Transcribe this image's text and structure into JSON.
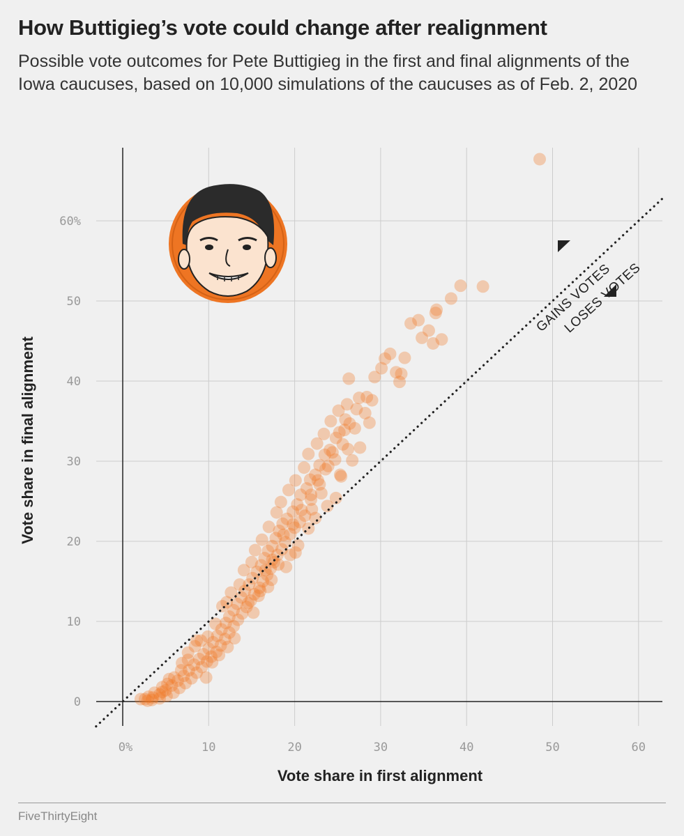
{
  "title": "How Buttigieg’s vote could change after realignment",
  "subtitle": "Possible vote outcomes for Pete Buttigieg in the first and final alignments of the Iowa caucuses, based on 10,000 simulations of the caucuses as of Feb. 2, 2020",
  "footer": "FiveThirtyEight",
  "colors": {
    "point": "#ee7523",
    "grid": "#cccccc",
    "axis": "#222222",
    "background": "#f0f0f0"
  },
  "icons": {
    "portrait": "pete-buttigieg-caricature-icon"
  },
  "chart_data": {
    "type": "scatter",
    "xlabel": "Vote share in first alignment",
    "ylabel": "Vote share in final alignment",
    "xlim": [
      -3,
      63
    ],
    "ylim": [
      -3,
      68
    ],
    "x_ticks": [
      0,
      10,
      20,
      30,
      40,
      50,
      60
    ],
    "x_tick_labels": [
      "0%",
      "10",
      "20",
      "30",
      "40",
      "50",
      "60"
    ],
    "y_ticks": [
      0,
      10,
      20,
      30,
      40,
      50,
      60
    ],
    "y_tick_labels": [
      "0",
      "10",
      "20",
      "30",
      "40",
      "50",
      "60%"
    ],
    "grid": true,
    "reference_line": {
      "type": "diagonal",
      "label_above": "GAINS VOTES",
      "label_below": "LOSES VOTES"
    },
    "points": [
      [
        48.5,
        67.7
      ],
      [
        39.3,
        51.9
      ],
      [
        41.9,
        51.8
      ],
      [
        38.2,
        50.3
      ],
      [
        36.5,
        48.9
      ],
      [
        36.4,
        48.5
      ],
      [
        33.5,
        47.2
      ],
      [
        34.4,
        47.6
      ],
      [
        34.8,
        45.4
      ],
      [
        35.6,
        46.3
      ],
      [
        37.1,
        45.2
      ],
      [
        36.1,
        44.7
      ],
      [
        31.1,
        43.4
      ],
      [
        30.5,
        42.8
      ],
      [
        32.8,
        42.9
      ],
      [
        30.1,
        41.6
      ],
      [
        31.8,
        41.1
      ],
      [
        32.4,
        40.9
      ],
      [
        29.3,
        40.5
      ],
      [
        32.2,
        39.9
      ],
      [
        26.3,
        40.3
      ],
      [
        28.4,
        38.0
      ],
      [
        29.0,
        37.6
      ],
      [
        27.5,
        37.9
      ],
      [
        27.2,
        36.5
      ],
      [
        28.2,
        36.0
      ],
      [
        25.9,
        35.2
      ],
      [
        26.4,
        34.7
      ],
      [
        27.0,
        34.1
      ],
      [
        25.2,
        33.6
      ],
      [
        24.8,
        32.9
      ],
      [
        25.6,
        32.1
      ],
      [
        26.2,
        31.5
      ],
      [
        24.1,
        31.4
      ],
      [
        23.5,
        30.8
      ],
      [
        24.7,
        30.2
      ],
      [
        25.3,
        28.3
      ],
      [
        22.9,
        29.5
      ],
      [
        23.6,
        29.0
      ],
      [
        22.4,
        28.3
      ],
      [
        21.8,
        27.7
      ],
      [
        22.9,
        27.1
      ],
      [
        21.4,
        26.6
      ],
      [
        23.1,
        26.0
      ],
      [
        20.7,
        25.8
      ],
      [
        21.9,
        25.2
      ],
      [
        20.3,
        24.6
      ],
      [
        22.0,
        24.0
      ],
      [
        19.8,
        23.7
      ],
      [
        21.2,
        23.2
      ],
      [
        19.1,
        22.8
      ],
      [
        20.6,
        22.4
      ],
      [
        18.6,
        22.2
      ],
      [
        20.0,
        21.7
      ],
      [
        18.2,
        21.3
      ],
      [
        19.5,
        20.9
      ],
      [
        17.8,
        20.4
      ],
      [
        18.9,
        19.9
      ],
      [
        17.4,
        19.4
      ],
      [
        18.5,
        19.0
      ],
      [
        16.9,
        18.8
      ],
      [
        18.0,
        18.3
      ],
      [
        16.5,
        17.9
      ],
      [
        17.6,
        17.4
      ],
      [
        16.1,
        17.0
      ],
      [
        17.2,
        16.6
      ],
      [
        15.6,
        16.2
      ],
      [
        16.8,
        15.8
      ],
      [
        15.1,
        15.4
      ],
      [
        16.3,
        15.0
      ],
      [
        14.7,
        14.6
      ],
      [
        15.9,
        14.2
      ],
      [
        14.2,
        13.8
      ],
      [
        15.3,
        13.4
      ],
      [
        13.8,
        13.0
      ],
      [
        14.9,
        12.6
      ],
      [
        13.3,
        12.2
      ],
      [
        14.4,
        11.8
      ],
      [
        12.9,
        11.4
      ],
      [
        13.9,
        11.0
      ],
      [
        12.4,
        10.6
      ],
      [
        13.4,
        10.2
      ],
      [
        12.0,
        9.8
      ],
      [
        12.9,
        9.4
      ],
      [
        11.5,
        9.0
      ],
      [
        12.4,
        8.6
      ],
      [
        11.0,
        8.2
      ],
      [
        11.9,
        7.8
      ],
      [
        10.5,
        7.4
      ],
      [
        11.4,
        7.0
      ],
      [
        10.0,
        6.6
      ],
      [
        10.9,
        6.2
      ],
      [
        9.4,
        5.9
      ],
      [
        10.3,
        5.6
      ],
      [
        8.9,
        5.3
      ],
      [
        9.8,
        5.0
      ],
      [
        8.3,
        4.6
      ],
      [
        9.2,
        4.3
      ],
      [
        7.7,
        3.9
      ],
      [
        8.6,
        3.6
      ],
      [
        7.1,
        3.2
      ],
      [
        8.0,
        2.9
      ],
      [
        6.4,
        2.6
      ],
      [
        7.3,
        2.3
      ],
      [
        5.7,
        2.0
      ],
      [
        6.6,
        1.7
      ],
      [
        5.0,
        1.4
      ],
      [
        5.9,
        1.1
      ],
      [
        4.3,
        0.9
      ],
      [
        5.1,
        0.7
      ],
      [
        3.5,
        0.5
      ],
      [
        4.3,
        0.4
      ],
      [
        2.6,
        0.3
      ],
      [
        3.4,
        0.2
      ],
      [
        2.1,
        0.3
      ],
      [
        3.0,
        0.6
      ],
      [
        4.6,
        1.8
      ],
      [
        5.4,
        2.8
      ],
      [
        6.9,
        4.8
      ],
      [
        7.6,
        6.1
      ],
      [
        8.4,
        6.9
      ],
      [
        9.1,
        7.6
      ],
      [
        9.7,
        3.0
      ],
      [
        10.4,
        4.9
      ],
      [
        11.2,
        5.8
      ],
      [
        12.1,
        12.4
      ],
      [
        12.6,
        13.6
      ],
      [
        13.6,
        14.6
      ],
      [
        14.1,
        16.4
      ],
      [
        15.0,
        17.4
      ],
      [
        15.4,
        18.9
      ],
      [
        16.2,
        20.2
      ],
      [
        17.0,
        21.8
      ],
      [
        17.9,
        23.6
      ],
      [
        18.4,
        24.9
      ],
      [
        19.3,
        26.4
      ],
      [
        20.1,
        27.6
      ],
      [
        21.1,
        29.2
      ],
      [
        21.6,
        30.9
      ],
      [
        22.6,
        32.2
      ],
      [
        23.4,
        33.4
      ],
      [
        24.2,
        35.0
      ],
      [
        25.1,
        36.3
      ],
      [
        26.1,
        37.1
      ],
      [
        15.2,
        11.1
      ],
      [
        14.6,
        12.3
      ],
      [
        16.9,
        14.3
      ],
      [
        18.1,
        17.1
      ],
      [
        19.5,
        18.3
      ],
      [
        20.4,
        19.5
      ],
      [
        21.6,
        21.6
      ],
      [
        22.4,
        22.9
      ],
      [
        23.8,
        24.4
      ],
      [
        24.8,
        25.4
      ],
      [
        25.4,
        28.1
      ],
      [
        26.7,
        30.1
      ],
      [
        27.6,
        31.7
      ],
      [
        28.7,
        34.8
      ],
      [
        13.0,
        7.9
      ],
      [
        12.2,
        6.8
      ],
      [
        11.6,
        11.9
      ],
      [
        10.8,
        9.7
      ],
      [
        9.9,
        8.1
      ],
      [
        8.6,
        7.6
      ],
      [
        7.6,
        5.2
      ],
      [
        6.8,
        3.9
      ],
      [
        6.0,
        3.0
      ],
      [
        5.2,
        2.2
      ],
      [
        4.6,
        1.2
      ],
      [
        3.7,
        1.1
      ],
      [
        2.9,
        0.1
      ],
      [
        15.8,
        13.2
      ],
      [
        16.6,
        16.4
      ],
      [
        17.4,
        17.7
      ],
      [
        18.7,
        20.8
      ],
      [
        19.8,
        22.1
      ],
      [
        20.8,
        23.9
      ],
      [
        21.9,
        25.8
      ],
      [
        22.7,
        27.6
      ],
      [
        23.9,
        29.4
      ],
      [
        24.4,
        31.1
      ],
      [
        25.8,
        33.9
      ],
      [
        19.0,
        16.8
      ],
      [
        20.1,
        18.6
      ],
      [
        17.3,
        15.2
      ],
      [
        16.0,
        13.8
      ]
    ]
  }
}
